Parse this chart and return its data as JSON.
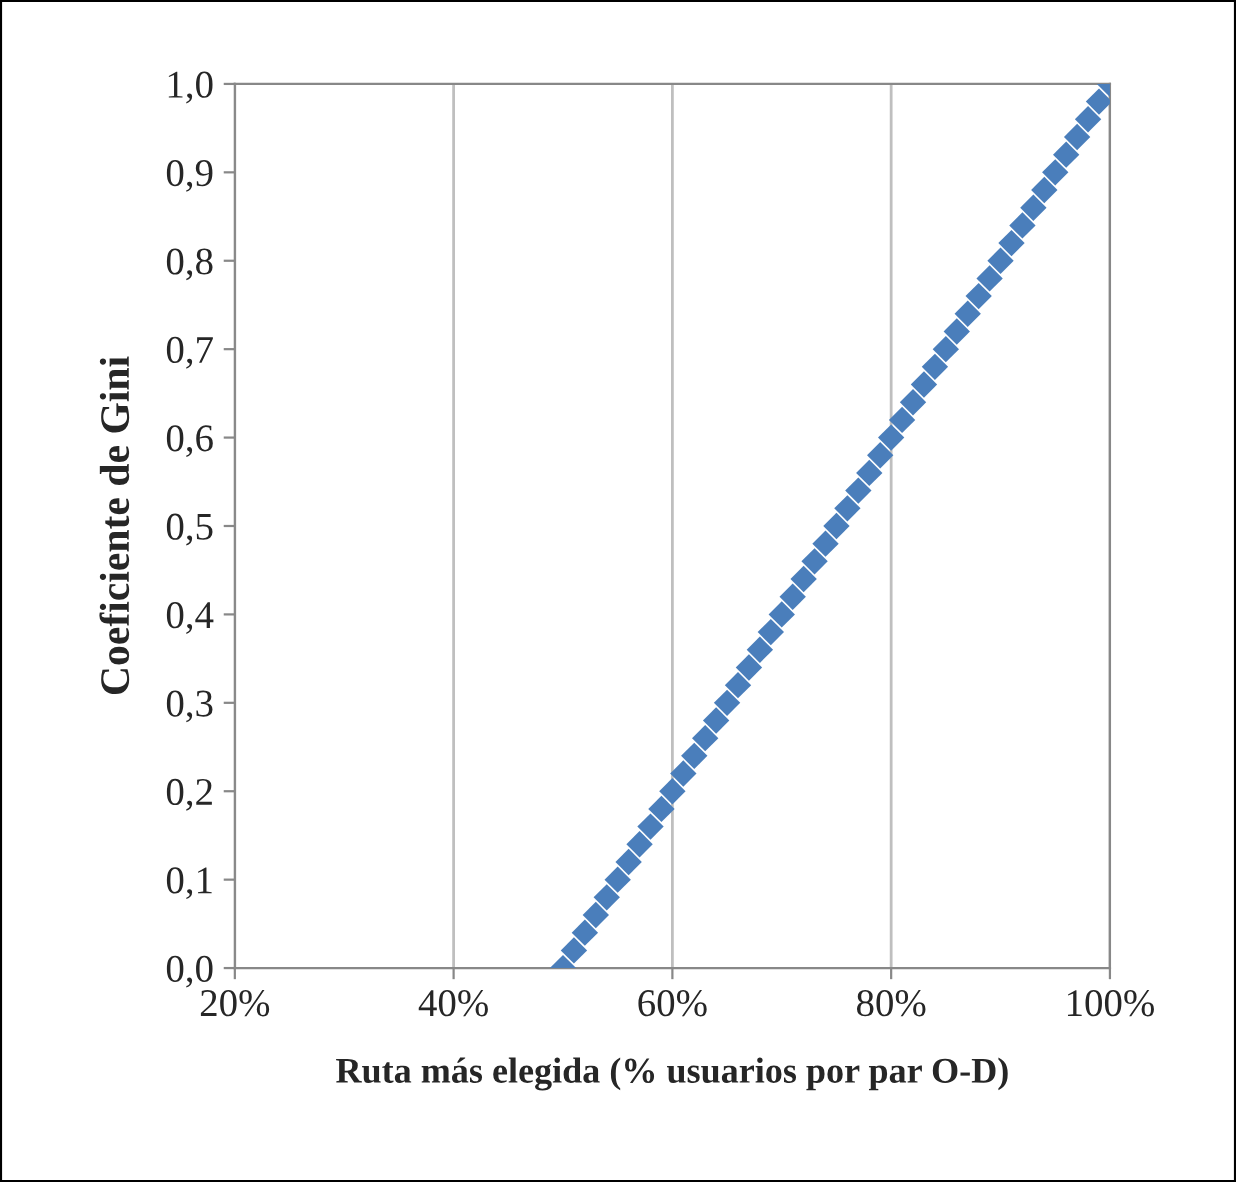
{
  "chart_data": {
    "type": "scatter",
    "xlabel": "Ruta más elegida (% usuarios por par O-D)",
    "ylabel": "Coeficiente de Gini",
    "x": [
      50,
      51,
      52,
      53,
      54,
      55,
      56,
      57,
      58,
      59,
      60,
      61,
      62,
      63,
      64,
      65,
      66,
      67,
      68,
      69,
      70,
      71,
      72,
      73,
      74,
      75,
      76,
      77,
      78,
      79,
      80,
      81,
      82,
      83,
      84,
      85,
      86,
      87,
      88,
      89,
      90,
      91,
      92,
      93,
      94,
      95,
      96,
      97,
      98,
      99,
      100
    ],
    "series": [
      {
        "color": "#4a7ebb",
        "values": [
          0.0,
          0.02,
          0.04,
          0.06,
          0.08,
          0.1,
          0.12,
          0.14,
          0.16,
          0.18,
          0.2,
          0.22,
          0.24,
          0.26,
          0.28,
          0.3,
          0.32,
          0.34,
          0.36,
          0.38,
          0.4,
          0.42,
          0.44,
          0.46,
          0.48,
          0.5,
          0.52,
          0.54,
          0.56,
          0.58,
          0.6,
          0.62,
          0.64,
          0.66,
          0.68,
          0.7,
          0.72,
          0.74,
          0.76,
          0.78,
          0.8,
          0.82,
          0.84,
          0.86,
          0.88,
          0.9,
          0.92,
          0.94,
          0.96,
          0.98,
          1.0
        ]
      }
    ],
    "marker": "diamond",
    "grid": "x",
    "xlim": [
      20,
      100
    ],
    "xticks": [
      {
        "value": 20,
        "label": "20%"
      },
      {
        "value": 40,
        "label": "40%"
      },
      {
        "value": 60,
        "label": "60%"
      },
      {
        "value": 80,
        "label": "80%"
      },
      {
        "value": 100,
        "label": "100%"
      }
    ],
    "ylim": [
      0,
      1
    ],
    "yticks": [
      {
        "value": 0,
        "label": "0,0"
      },
      {
        "value": 0.1,
        "label": "0,1"
      },
      {
        "value": 0.2,
        "label": "0,2"
      },
      {
        "value": 0.3,
        "label": "0,3"
      },
      {
        "value": 0.4,
        "label": "0,4"
      },
      {
        "value": 0.5,
        "label": "0,5"
      },
      {
        "value": 0.6,
        "label": "0,6"
      },
      {
        "value": 0.7,
        "label": "0,7"
      },
      {
        "value": 0.8,
        "label": "0,8"
      },
      {
        "value": 0.9,
        "label": "0,9"
      },
      {
        "value": 1.0,
        "label": "1,0"
      }
    ]
  }
}
